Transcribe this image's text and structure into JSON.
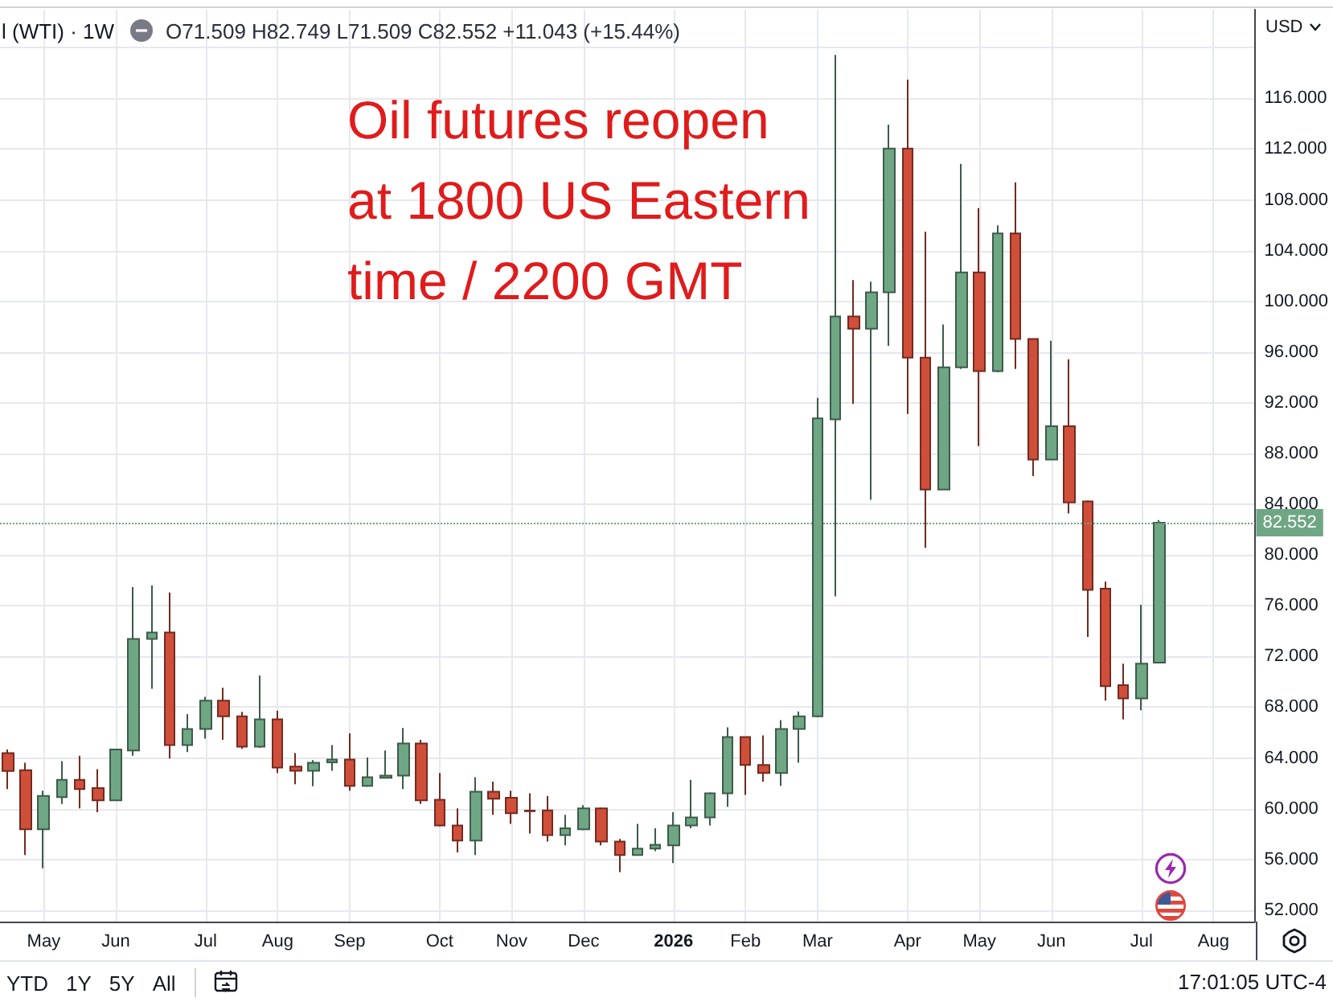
{
  "chart_data": {
    "type": "candlestick",
    "title": "l (WTI) · 1W",
    "subtitle": "O71.509 H82.749 L71.509 C82.552 +11.043 (+15.44%)",
    "ylabel": "USD",
    "annotations": [
      "Oil futures reopen\nat 1800 US Eastern\ntime / 2200 GMT",
      "YTD",
      "1Y",
      "5Y",
      "All",
      "17:01:05 UTC-4"
    ],
    "x": [
      "2025-04-21",
      "2025-04-28",
      "2025-05-05",
      "2025-05-12",
      "2025-05-19",
      "2025-05-26",
      "2025-06-02",
      "2025-06-09",
      "2025-06-16",
      "2025-06-23",
      "2025-06-30",
      "2025-07-07",
      "2025-07-14",
      "2025-07-21",
      "2025-07-28",
      "2025-08-04",
      "2025-08-11",
      "2025-08-18",
      "2025-08-25",
      "2025-09-01",
      "2025-09-08",
      "2025-09-15",
      "2025-09-22",
      "2025-09-29",
      "2025-10-06",
      "2025-10-13",
      "2025-10-20",
      "2025-10-27",
      "2025-11-03",
      "2025-11-10",
      "2025-11-17",
      "2025-11-24",
      "2025-12-01",
      "2025-12-08",
      "2025-12-15",
      "2025-12-22",
      "2025-12-29",
      "2026-01-05",
      "2026-01-12",
      "2026-01-19",
      "2026-01-26",
      "2026-02-02",
      "2026-02-09",
      "2026-02-16",
      "2026-02-23",
      "2026-03-02",
      "2026-03-09",
      "2026-03-16",
      "2026-03-23",
      "2026-03-30",
      "2026-04-06",
      "2026-04-13",
      "2026-04-20",
      "2026-04-27",
      "2026-05-04",
      "2026-05-11",
      "2026-05-18",
      "2026-05-25",
      "2026-06-01",
      "2026-06-08",
      "2026-06-15",
      "2026-06-22",
      "2026-06-29",
      "2026-07-06",
      "2026-07-13"
    ],
    "ohlc": [
      [
        64.38,
        64.67,
        61.55,
        62.98
      ],
      [
        63.03,
        63.62,
        56.35,
        58.38
      ],
      [
        58.38,
        61.42,
        55.3,
        61.0
      ],
      [
        60.91,
        63.75,
        60.37,
        62.27
      ],
      [
        62.27,
        64.17,
        60.03,
        61.55
      ],
      [
        61.63,
        63.11,
        59.73,
        60.66
      ],
      [
        60.66,
        64.7,
        60.6,
        64.67
      ],
      [
        64.59,
        77.48,
        64.17,
        73.38
      ],
      [
        73.38,
        77.6,
        69.45,
        73.89
      ],
      [
        73.89,
        77.05,
        63.95,
        65.01
      ],
      [
        65.01,
        67.46,
        64.46,
        66.28
      ],
      [
        66.28,
        68.82,
        65.52,
        68.52
      ],
      [
        68.52,
        69.53,
        65.43,
        67.29
      ],
      [
        67.29,
        67.63,
        64.71,
        64.89
      ],
      [
        64.89,
        70.5,
        64.8,
        67.04
      ],
      [
        67.04,
        67.72,
        62.81,
        63.24
      ],
      [
        63.32,
        64.38,
        61.92,
        62.99
      ],
      [
        62.99,
        63.83,
        61.76,
        63.62
      ],
      [
        63.66,
        65.01,
        62.99,
        63.87
      ],
      [
        63.87,
        65.94,
        61.42,
        61.8
      ],
      [
        61.8,
        64.04,
        61.72,
        62.48
      ],
      [
        62.43,
        64.59,
        62.4,
        62.61
      ],
      [
        62.61,
        66.36,
        61.55,
        65.14
      ],
      [
        65.14,
        65.43,
        60.37,
        60.66
      ],
      [
        60.7,
        62.81,
        58.6,
        58.68
      ],
      [
        58.68,
        60.03,
        56.56,
        57.49
      ],
      [
        57.49,
        62.48,
        56.35,
        61.34
      ],
      [
        61.34,
        62.14,
        59.52,
        60.79
      ],
      [
        60.87,
        61.42,
        58.8,
        59.65
      ],
      [
        59.85,
        61.21,
        58.04,
        59.8
      ],
      [
        59.86,
        61.0,
        57.41,
        57.92
      ],
      [
        57.92,
        59.52,
        57.11,
        58.46
      ],
      [
        58.38,
        60.28,
        58.3,
        60.03
      ],
      [
        60.03,
        60.11,
        57.11,
        57.41
      ],
      [
        57.41,
        57.62,
        55.0,
        56.35
      ],
      [
        56.35,
        58.8,
        56.3,
        56.86
      ],
      [
        56.86,
        58.46,
        56.65,
        57.16
      ],
      [
        57.11,
        59.73,
        55.72,
        58.68
      ],
      [
        58.68,
        62.27,
        58.46,
        59.31
      ],
      [
        59.31,
        61.29,
        58.68,
        61.21
      ],
      [
        61.21,
        66.41,
        60.15,
        65.65
      ],
      [
        65.65,
        65.7,
        61.09,
        63.45
      ],
      [
        63.45,
        65.78,
        62.14,
        62.81
      ],
      [
        62.81,
        66.99,
        61.8,
        66.28
      ],
      [
        66.28,
        67.67,
        63.62,
        67.29
      ],
      [
        67.29,
        92.39,
        67.2,
        90.78
      ],
      [
        90.7,
        119.43,
        76.75,
        98.81
      ],
      [
        98.81,
        101.68,
        91.92,
        97.84
      ],
      [
        97.84,
        101.56,
        84.36,
        100.71
      ],
      [
        100.71,
        113.94,
        96.49,
        112.04
      ],
      [
        112.04,
        117.49,
        91.13,
        95.56
      ],
      [
        95.56,
        105.49,
        80.56,
        85.17
      ],
      [
        85.17,
        98.17,
        85.1,
        94.8
      ],
      [
        94.8,
        110.85,
        94.67,
        102.28
      ],
      [
        102.28,
        107.35,
        88.59,
        94.5
      ],
      [
        94.5,
        105.99,
        94.4,
        105.36
      ],
      [
        105.36,
        109.38,
        94.67,
        97.03
      ],
      [
        97.03,
        97.1,
        86.22,
        87.53
      ],
      [
        87.53,
        96.9,
        87.5,
        90.15
      ],
      [
        90.15,
        95.43,
        83.27,
        84.15
      ],
      [
        84.23,
        84.3,
        73.55,
        77.26
      ],
      [
        77.35,
        77.9,
        68.52,
        69.66
      ],
      [
        69.74,
        71.43,
        67.04,
        68.69
      ],
      [
        68.69,
        76.08,
        67.76,
        71.43
      ],
      [
        71.509,
        82.749,
        71.509,
        82.552
      ]
    ],
    "colors": [
      "#cf4f3a",
      "#cf4f3a",
      "#6fa684",
      "#6fa684",
      "#cf4f3a",
      "#cf4f3a",
      "#6fa684",
      "#6fa684",
      "#6fa684",
      "#cf4f3a",
      "#6fa684",
      "#6fa684",
      "#cf4f3a",
      "#cf4f3a",
      "#6fa684",
      "#cf4f3a",
      "#cf4f3a",
      "#6fa684",
      "#6fa684",
      "#cf4f3a",
      "#6fa684",
      "#6fa684",
      "#6fa684",
      "#cf4f3a",
      "#cf4f3a",
      "#cf4f3a",
      "#6fa684",
      "#cf4f3a",
      "#cf4f3a",
      "#cf4f3a",
      "#cf4f3a",
      "#6fa684",
      "#6fa684",
      "#cf4f3a",
      "#cf4f3a",
      "#6fa684",
      "#6fa684",
      "#6fa684",
      "#6fa684",
      "#6fa684",
      "#6fa684",
      "#cf4f3a",
      "#cf4f3a",
      "#6fa684",
      "#6fa684",
      "#6fa684",
      "#6fa684",
      "#cf4f3a",
      "#6fa684",
      "#6fa684",
      "#cf4f3a",
      "#cf4f3a",
      "#6fa684",
      "#6fa684",
      "#cf4f3a",
      "#6fa684",
      "#cf4f3a",
      "#cf4f3a",
      "#6fa684",
      "#cf4f3a",
      "#cf4f3a",
      "#cf4f3a",
      "#cf4f3a",
      "#6fa684",
      "#6fa684"
    ],
    "xlim": [
      "2025-04-18",
      "2026-08-19"
    ],
    "xticks": [
      {
        "value": "2025-05-05",
        "label": "May"
      },
      {
        "value": "2025-06-02",
        "label": "Jun"
      },
      {
        "value": "2025-07-07",
        "label": "Jul"
      },
      {
        "value": "2025-08-04",
        "label": "Aug"
      },
      {
        "value": "2025-09-01",
        "label": "Sep"
      },
      {
        "value": "2025-10-06",
        "label": "Oct"
      },
      {
        "value": "2025-11-03",
        "label": "Nov"
      },
      {
        "value": "2025-12-01",
        "label": "Dec"
      },
      {
        "value": "2026-01-05",
        "label": "2026"
      },
      {
        "value": "2026-02-02",
        "label": "Feb"
      },
      {
        "value": "2026-03-02",
        "label": "Mar"
      },
      {
        "value": "2026-04-06",
        "label": "Apr"
      },
      {
        "value": "2026-05-04",
        "label": "May"
      },
      {
        "value": "2026-06-01",
        "label": "Jun"
      },
      {
        "value": "2026-07-06",
        "label": "Jul"
      },
      {
        "value": "2026-08-03",
        "label": "Aug"
      }
    ],
    "ylim": [
      51.1,
      123.0
    ],
    "yticks": [
      {
        "value": 52,
        "label": "52.000"
      },
      {
        "value": 56,
        "label": "56.000"
      },
      {
        "value": 60,
        "label": "60.000"
      },
      {
        "value": 64,
        "label": "64.000"
      },
      {
        "value": 68,
        "label": "68.000"
      },
      {
        "value": 72,
        "label": "72.000"
      },
      {
        "value": 76,
        "label": "76.000"
      },
      {
        "value": 80,
        "label": "80.000"
      },
      {
        "value": 84,
        "label": "84.000"
      },
      {
        "value": 88,
        "label": "88.000"
      },
      {
        "value": 92,
        "label": "92.000"
      },
      {
        "value": 96,
        "label": "96.000"
      },
      {
        "value": 100,
        "label": "100.000"
      },
      {
        "value": 104,
        "label": "104.000"
      },
      {
        "value": 108,
        "label": "108.000"
      },
      {
        "value": 112,
        "label": "112.000"
      },
      {
        "value": 116,
        "label": "116.000"
      },
      {
        "value": 120,
        "label": null
      }
    ],
    "grid": true,
    "ref_lines": [
      {
        "axis": "y",
        "value": 82.552,
        "label": "82.552",
        "color": "#6fa684",
        "line_style": "dotted"
      }
    ]
  }
}
